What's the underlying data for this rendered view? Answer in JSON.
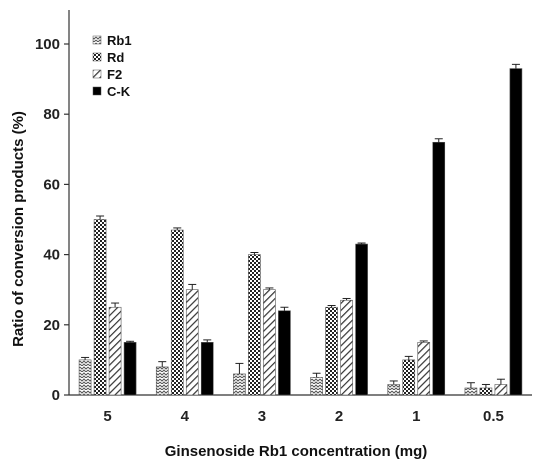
{
  "chart_data": {
    "type": "bar",
    "categories": [
      "5",
      "4",
      "3",
      "2",
      "1",
      "0.5"
    ],
    "series": [
      {
        "name": "Rb1",
        "values": [
          10,
          8,
          6,
          5,
          3,
          2
        ],
        "errors": [
          0.7,
          1.5,
          3.0,
          1.2,
          1.0,
          1.5
        ],
        "color": "#555555"
      },
      {
        "name": "Rd",
        "values": [
          50,
          47,
          40,
          25,
          10,
          2
        ],
        "errors": [
          1.0,
          0.6,
          0.6,
          0.5,
          1.0,
          1.0
        ],
        "color": "#3a3a3a"
      },
      {
        "name": "F2",
        "values": [
          25,
          30,
          30,
          27,
          15,
          3
        ],
        "errors": [
          1.2,
          1.5,
          0.5,
          0.5,
          0.4,
          1.5
        ],
        "color": "#444444"
      },
      {
        "name": "C-K",
        "values": [
          15,
          15,
          24,
          43,
          72,
          93
        ],
        "errors": [
          0.3,
          0.7,
          1.0,
          0.3,
          1.0,
          1.2
        ],
        "color": "#000000"
      }
    ],
    "xlabel": "Ginsenoside  Rb1  concentration  (mg)",
    "ylabel": "Ratio of conversion  products  (%)",
    "ylim": [
      0,
      100
    ],
    "yticks": [
      "0",
      "20",
      "40",
      "60",
      "80",
      "100"
    ],
    "legend_position": "top-left",
    "grid": false
  }
}
